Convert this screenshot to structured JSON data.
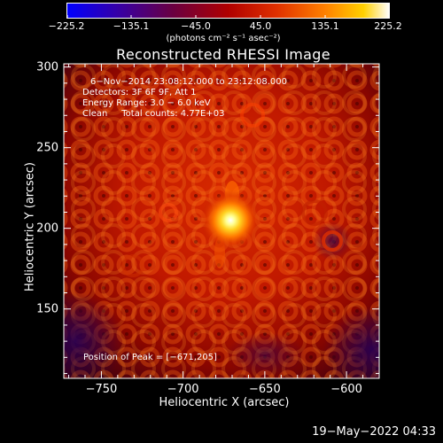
{
  "chart_data": {
    "type": "heatmap",
    "title": "Reconstructed RHESSI Image",
    "xlabel": "Heliocentric X (arcsec)",
    "ylabel": "Heliocentric Y (arcsec)",
    "xlim": [
      -773,
      -580
    ],
    "ylim": [
      107,
      302
    ],
    "x_ticks": [
      -750,
      -700,
      -650,
      -600
    ],
    "x_tick_labels": [
      "−750",
      "−700",
      "−650",
      "−600"
    ],
    "y_ticks": [
      150,
      200,
      250,
      300
    ],
    "y_tick_labels": [
      "150",
      "200",
      "250",
      "300"
    ],
    "colorbar": {
      "colormap": "fire",
      "range": [
        -225.2,
        225.2
      ],
      "ticks": [
        -225.2,
        -135.1,
        -45.0,
        45.0,
        135.1,
        225.2
      ],
      "tick_labels": [
        "−225.2",
        "−135.1",
        "−45.0",
        "45.0",
        "135.1",
        "225.2"
      ],
      "units": "(photons cm⁻² s⁻¹ asec⁻²)"
    },
    "peak": {
      "x": -671,
      "y": 205,
      "value": 225.2
    },
    "annotations": {
      "time_range": "6−Nov−2014 23:08:12.000 to 23:12:08.000",
      "detectors": "Detectors: 3F 6F 9F, Att 1",
      "energy": "Energy Range: 3.0 − 6.0 keV",
      "method": "Clean     Total counts: 4.77E+03",
      "peak_position": "Position of Peak = [−671,205]"
    },
    "grid": false,
    "legend": "none"
  },
  "colors": {
    "background": "#000000",
    "colorbar_stops": [
      "#0000ff",
      "#3a00a0",
      "#6a0040",
      "#b00000",
      "#e03000",
      "#ff8000",
      "#ffd000",
      "#ffffff"
    ]
  },
  "footer": {
    "timestamp": "19−May−2022 04:33"
  }
}
